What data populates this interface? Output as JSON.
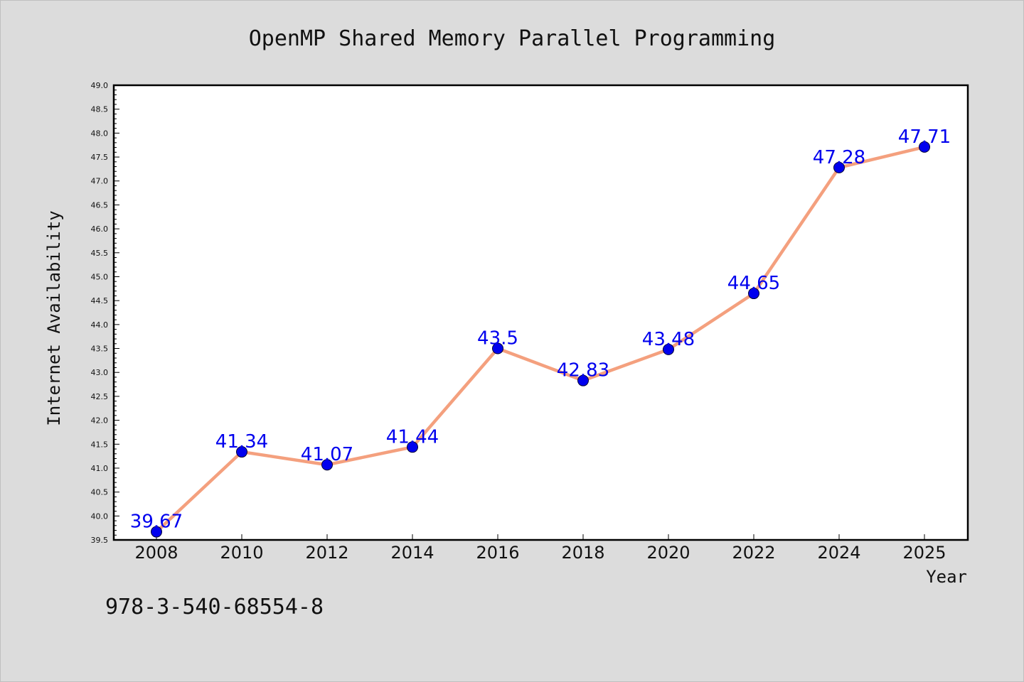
{
  "chart_data": {
    "type": "line",
    "title": "OpenMP Shared Memory Parallel Programming",
    "xlabel": "Year",
    "ylabel": "Internet Availability",
    "categories": [
      "2008",
      "2010",
      "2012",
      "2014",
      "2016",
      "2018",
      "2020",
      "2022",
      "2024",
      "2025"
    ],
    "series": [
      {
        "values": [
          39.67,
          41.34,
          41.07,
          41.44,
          43.5,
          42.83,
          43.48,
          44.65,
          47.28,
          47.71
        ]
      }
    ],
    "data_labels": [
      "39.67",
      "41.34",
      "41.07",
      "41.44",
      "43.5",
      "42.83",
      "43.48",
      "44.65",
      "47.28",
      "47.71"
    ],
    "ylim": [
      39.5,
      49.0
    ],
    "yticks": [
      "39.5",
      "40.0",
      "40.5",
      "41.0",
      "41.5",
      "42.0",
      "42.5",
      "43.0",
      "43.5",
      "44.0",
      "44.5",
      "45.0",
      "45.5",
      "46.0",
      "46.5",
      "47.0",
      "47.5",
      "48.0",
      "48.5",
      "49.0"
    ],
    "grid": false,
    "line_color": "#f4a07e",
    "marker_color": "#0000ee",
    "label_color": "#0000ee"
  },
  "footer": {
    "isbn": "978-3-540-68554-8"
  }
}
